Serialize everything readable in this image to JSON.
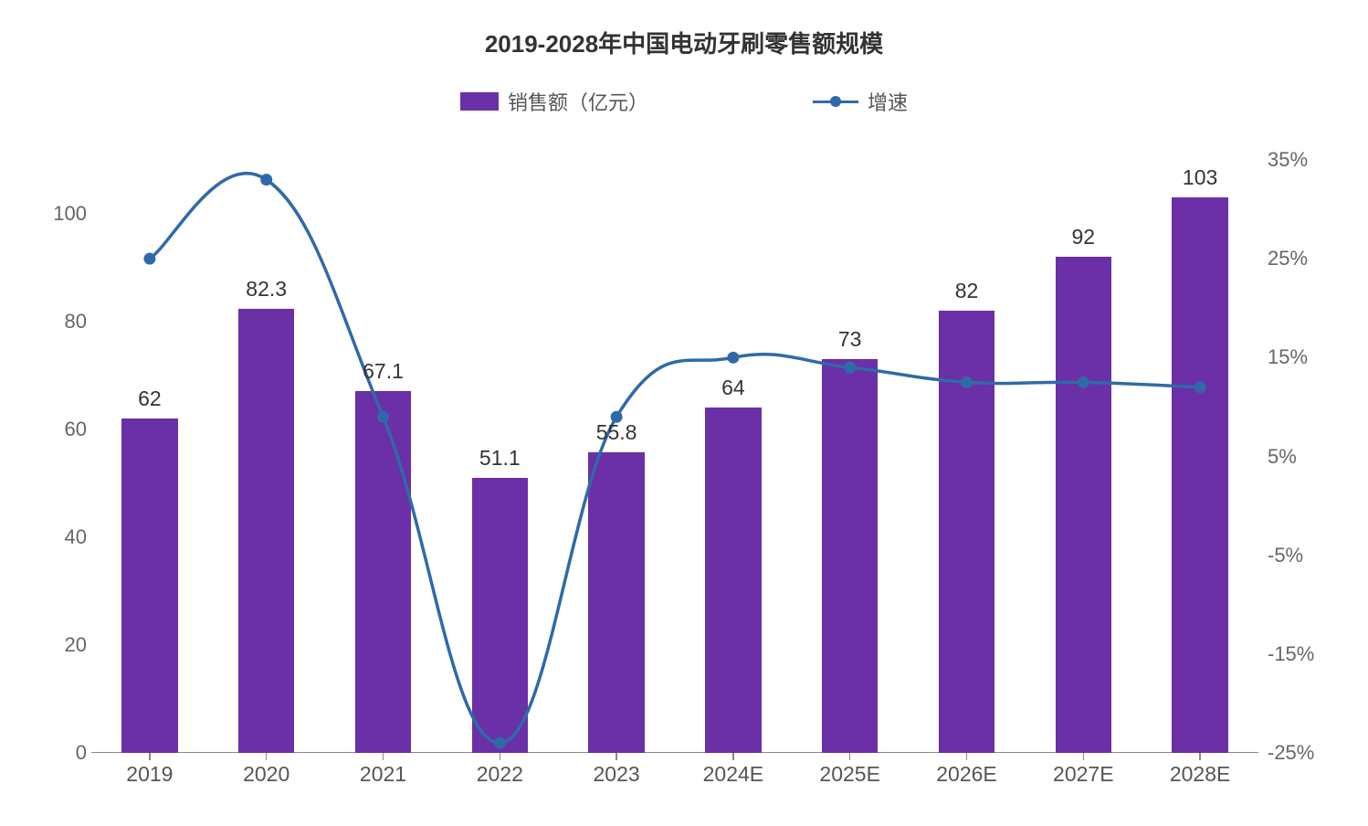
{
  "chart": {
    "type": "bar+line",
    "title": "2019-2028年中国电动牙刷零售额规模",
    "title_fontsize": 26,
    "title_color": "#333333",
    "background_color": "#ffffff",
    "legend": {
      "bar_label": "销售额（亿元）",
      "line_label": "增速",
      "fontsize": 22,
      "text_color": "#555555"
    },
    "categories": [
      "2019",
      "2020",
      "2021",
      "2022",
      "2023",
      "2024E",
      "2025E",
      "2026E",
      "2027E",
      "2028E"
    ],
    "bar_series": {
      "name": "销售额（亿元）",
      "values": [
        62,
        82.3,
        67.1,
        51.1,
        55.8,
        64,
        73,
        82,
        92,
        103
      ],
      "value_labels": [
        "62",
        "82.3",
        "67.1",
        "51.1",
        "55.8",
        "64",
        "73",
        "82",
        "92",
        "103"
      ],
      "color": "#6b2fa8",
      "bar_width_ratio": 0.48
    },
    "line_series": {
      "name": "增速",
      "values": [
        25,
        33,
        9,
        -24,
        9,
        15,
        14,
        12.5,
        12.5,
        12
      ],
      "color": "#2f6aa8",
      "line_width": 3.5,
      "marker_radius": 6.5,
      "smooth": true
    },
    "y_left": {
      "min": 0,
      "max": 110,
      "ticks": [
        0,
        20,
        40,
        60,
        80,
        100
      ],
      "tick_labels": [
        "0",
        "20",
        "40",
        "60",
        "80",
        "100"
      ],
      "fontsize": 22,
      "color": "#666666"
    },
    "y_right": {
      "min": -25,
      "max": 35,
      "ticks": [
        -25,
        -15,
        -5,
        5,
        15,
        25,
        35
      ],
      "tick_labels": [
        "-25%",
        "-15%",
        "-5%",
        "5%",
        "15%",
        "25%",
        "35%"
      ],
      "fontsize": 22,
      "color": "#666666"
    },
    "x_axis": {
      "fontsize": 23,
      "color": "#555555"
    },
    "axis_line_color": "#888888",
    "data_label_fontsize": 23,
    "data_label_color": "#333333"
  }
}
